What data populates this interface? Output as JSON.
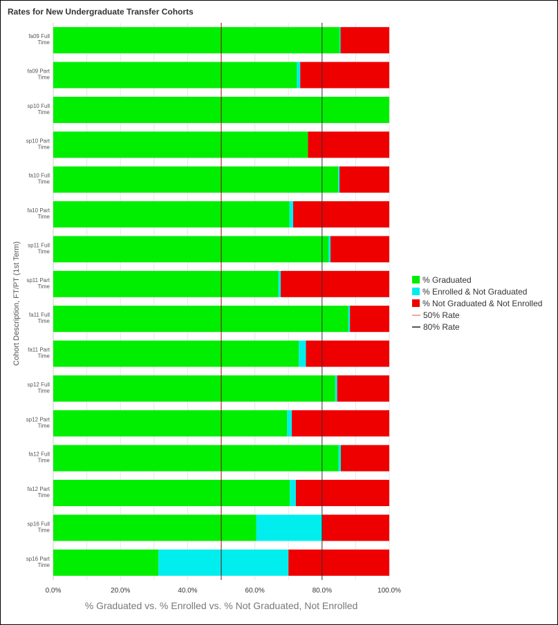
{
  "chart_data": {
    "type": "bar",
    "orientation": "horizontal",
    "stacked": true,
    "title": "Rates for New Undergraduate Transfer Cohorts",
    "xlabel": "% Graduated vs. % Enrolled vs. % Not Graduated, Not Enrolled",
    "ylabel": "Cohort Description, FT/PT (1st Term)",
    "xlim": [
      0,
      100
    ],
    "x_ticks": [
      "0.0%",
      "20.0%",
      "40.0%",
      "60.0%",
      "80.0%",
      "100.0%"
    ],
    "categories": [
      [
        "fa09 Full",
        "Time"
      ],
      [
        "fa09 Part",
        "Time"
      ],
      [
        "sp10 Full",
        "Time"
      ],
      [
        "sp10 Part",
        "Time"
      ],
      [
        "fa10 Full",
        "Time"
      ],
      [
        "fa10 Part",
        "Time"
      ],
      [
        "sp11 Full",
        "Time"
      ],
      [
        "sp11 Part",
        "Time"
      ],
      [
        "fa11 Full",
        "Time"
      ],
      [
        "fa11 Part",
        "Time"
      ],
      [
        "sp12 Full",
        "Time"
      ],
      [
        "sp12 Part",
        "Time"
      ],
      [
        "fa12 Full",
        "Time"
      ],
      [
        "fa12 Part",
        "Time"
      ],
      [
        "sp16 Full",
        "Time"
      ],
      [
        "sp16 Part",
        "Time"
      ]
    ],
    "series": [
      {
        "name": "% Graduated",
        "color": "#00ee00",
        "values": [
          85.2,
          72.5,
          100,
          75.8,
          84.8,
          70.3,
          81.9,
          67.0,
          87.8,
          73.1,
          83.9,
          69.6,
          84.9,
          70.4,
          60.4,
          31.3
        ]
      },
      {
        "name": "% Enrolled & Not Graduated",
        "color": "#00eeee",
        "values": [
          0.3,
          1.0,
          0,
          0,
          0.4,
          1.1,
          0.6,
          0.7,
          0.5,
          2.1,
          0.6,
          1.4,
          0.7,
          1.8,
          19.6,
          38.7
        ]
      },
      {
        "name": "% Not Graduated & Not Enrolled",
        "color": "#ee0000",
        "values": [
          14.5,
          26.5,
          0,
          24.2,
          14.8,
          28.6,
          17.5,
          32.3,
          11.7,
          24.8,
          15.5,
          29.0,
          14.4,
          27.8,
          20.0,
          30.0
        ]
      }
    ],
    "reference_lines": [
      {
        "name": "50% Rate",
        "value": 50,
        "color": "#8b0000",
        "legend_color": "#f4a3a3"
      },
      {
        "name": "80% Rate",
        "value": 80,
        "color": "#333333",
        "legend_color": "#555555"
      }
    ],
    "grid": true,
    "legend_position": "right"
  }
}
